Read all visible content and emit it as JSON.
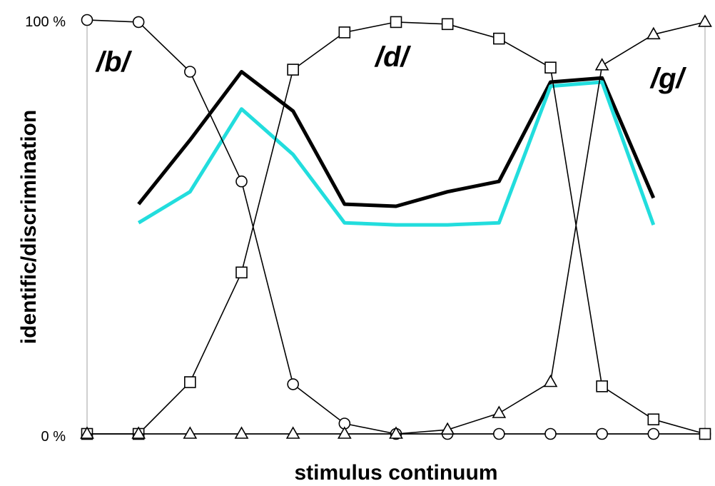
{
  "chart_data": {
    "type": "line",
    "title": "",
    "xlabel": "stimulus continuum",
    "ylabel": "identific/discrimination",
    "ylim": [
      0,
      100
    ],
    "xlim": [
      1,
      13
    ],
    "ytick_labels": [
      "0 %",
      "100 %"
    ],
    "region_labels": [
      "/b/",
      "/d/",
      "/g/"
    ],
    "grid": false,
    "legend": "none",
    "series": [
      {
        "marker": "circle",
        "color": "#000000",
        "x": [
          1,
          2,
          3,
          4,
          5,
          6,
          7,
          8,
          9,
          10,
          11,
          12,
          13
        ],
        "values": [
          100,
          99.5,
          87.5,
          61,
          12,
          2.5,
          0,
          0,
          0,
          0,
          0,
          0,
          0
        ]
      },
      {
        "marker": "square",
        "color": "#000000",
        "x": [
          1,
          2,
          3,
          4,
          5,
          6,
          7,
          8,
          9,
          10,
          11,
          12,
          13
        ],
        "values": [
          0,
          0,
          12.5,
          39,
          88,
          97,
          99.5,
          99,
          95.5,
          88.5,
          11.5,
          3.5,
          0
        ]
      },
      {
        "marker": "triangle",
        "color": "#000000",
        "x": [
          1,
          2,
          3,
          4,
          5,
          6,
          7,
          8,
          9,
          10,
          11,
          12,
          13
        ],
        "values": [
          0,
          0,
          0,
          0,
          0,
          0,
          0,
          1,
          5,
          12.5,
          89,
          96.5,
          99.5
        ]
      },
      {
        "marker": "none",
        "color": "#000000",
        "x": [
          2,
          3,
          4,
          5,
          6,
          7,
          8,
          9,
          10,
          11,
          12
        ],
        "values": [
          55.5,
          71,
          87.5,
          78,
          55.5,
          55,
          58.5,
          61,
          85,
          86,
          57
        ]
      },
      {
        "marker": "none",
        "color": "#22dddd",
        "x": [
          2,
          3,
          4,
          5,
          6,
          7,
          8,
          9,
          10,
          11,
          12
        ],
        "values": [
          51,
          58.5,
          78.5,
          67.5,
          51,
          50.5,
          50.5,
          51,
          84,
          85,
          50.5
        ]
      }
    ]
  }
}
